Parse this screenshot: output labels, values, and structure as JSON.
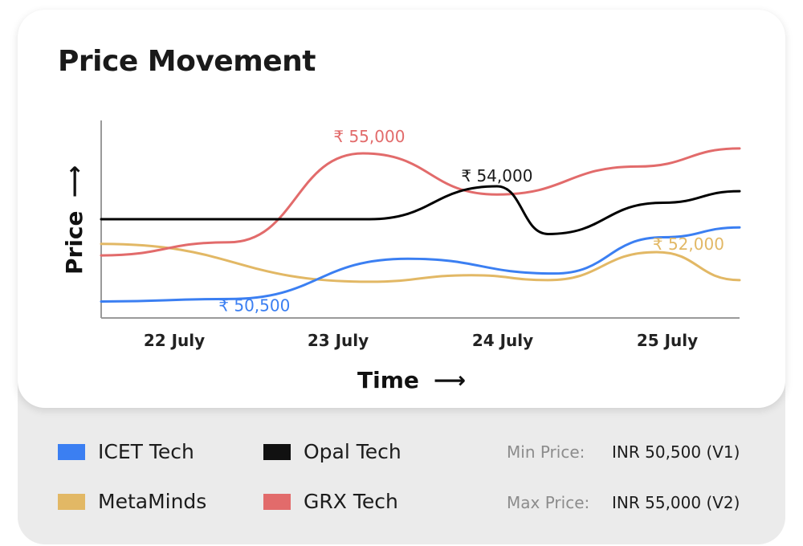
{
  "title": "Price Movement",
  "chart_data": {
    "type": "line",
    "title": "Price Movement",
    "xlabel": "Time",
    "ylabel": "Price",
    "categories": [
      "22 July",
      "23 July",
      "24 July",
      "25 July"
    ],
    "ylim": [
      50000,
      56000
    ],
    "series": [
      {
        "name": "ICET Tech",
        "color": "#3b7ff2",
        "points": [
          [
            0.0,
            50500
          ],
          [
            0.2,
            50575
          ],
          [
            0.48,
            51800
          ],
          [
            0.71,
            51350
          ],
          [
            0.88,
            52450
          ],
          [
            1.0,
            52750
          ]
        ]
      },
      {
        "name": "Opal Tech",
        "color": "#000000",
        "points": [
          [
            0.0,
            53000
          ],
          [
            0.2,
            53000
          ],
          [
            0.42,
            53000
          ],
          [
            0.62,
            54000
          ],
          [
            0.7,
            52550
          ],
          [
            0.88,
            53500
          ],
          [
            1.0,
            53850
          ]
        ]
      },
      {
        "name": "MetaMinds",
        "color": "#e2b865",
        "points": [
          [
            0.0,
            52250
          ],
          [
            0.42,
            51100
          ],
          [
            0.58,
            51300
          ],
          [
            0.7,
            51150
          ],
          [
            0.87,
            52000
          ],
          [
            1.0,
            51150
          ]
        ]
      },
      {
        "name": "GRX Tech",
        "color": "#e26b6b",
        "points": [
          [
            0.0,
            51900
          ],
          [
            0.2,
            52300
          ],
          [
            0.41,
            55000
          ],
          [
            0.62,
            53750
          ],
          [
            0.84,
            54600
          ],
          [
            1.0,
            55150
          ]
        ]
      }
    ],
    "data_labels": [
      {
        "text": "₹ 55,000",
        "series": "GRX Tech",
        "color": "#e26b6b",
        "x": 0.42,
        "y": 55000
      },
      {
        "text": "₹ 54,000",
        "series": "Opal Tech",
        "color": "#1a1a1a",
        "x": 0.62,
        "y": 54000
      },
      {
        "text": "₹ 52,000",
        "series": "MetaMinds",
        "color": "#e2b865",
        "x": 0.92,
        "y": 52000
      },
      {
        "text": "₹ 50,500",
        "series": "ICET Tech",
        "color": "#3b7ff2",
        "x": 0.24,
        "y": 50500
      }
    ],
    "grid": false,
    "legend": "bottom"
  },
  "legend": [
    {
      "label": "ICET Tech",
      "color": "#3b7ff2"
    },
    {
      "label": "Opal Tech",
      "color": "#111111"
    },
    {
      "label": "MetaMinds",
      "color": "#e2b865"
    },
    {
      "label": "GRX Tech",
      "color": "#e26b6b"
    }
  ],
  "stats": {
    "min_label": "Min Price:",
    "min_value": "INR 50,500 (V1)",
    "max_label": "Max Price:",
    "max_value": "INR 55,000 (V2)"
  },
  "arrow": "⟶"
}
